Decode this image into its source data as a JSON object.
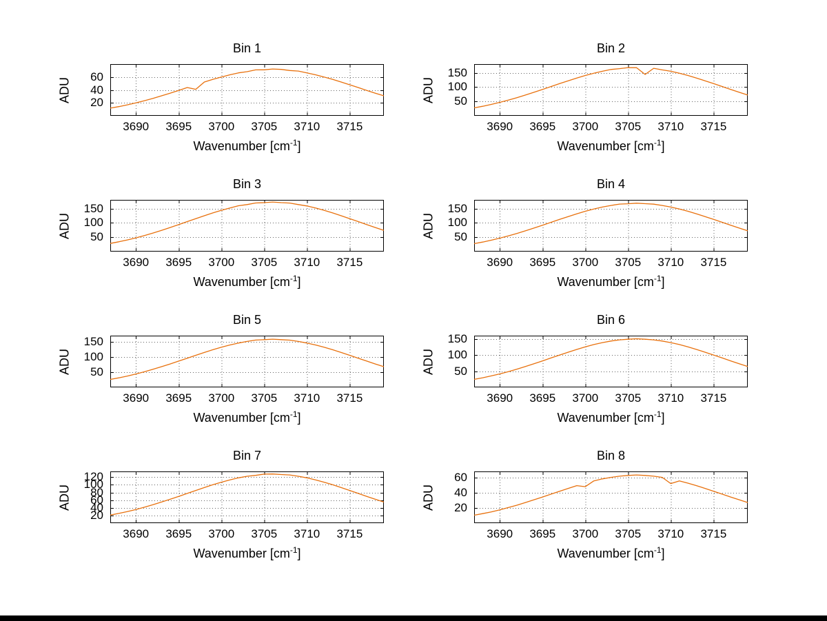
{
  "figure": {
    "background": "#ffffff",
    "line_color": "#e8700c",
    "grid_color": "#606060",
    "axis_color": "#000000"
  },
  "chart_data": {
    "type": "line",
    "xlabel": "Wavenumber [cm^-1]",
    "ylabel": "ADU",
    "grid": true,
    "legend": "none",
    "xlim": [
      3687,
      3719
    ],
    "xticks": [
      3690,
      3695,
      3700,
      3705,
      3710,
      3715
    ],
    "x": [
      3687,
      3688,
      3689,
      3690,
      3691,
      3692,
      3693,
      3694,
      3695,
      3696,
      3697,
      3698,
      3699,
      3700,
      3701,
      3702,
      3703,
      3704,
      3705,
      3706,
      3707,
      3708,
      3709,
      3710,
      3711,
      3712,
      3713,
      3714,
      3715,
      3716,
      3717,
      3718,
      3719
    ],
    "charts": [
      {
        "title": "Bin 1",
        "yticks": [
          20,
          40,
          60
        ],
        "ylim": [
          0,
          80
        ],
        "values": [
          11.8,
          14.2,
          17.0,
          20.0,
          23.4,
          27.0,
          30.9,
          35.0,
          39.3,
          43.7,
          41.0,
          52.3,
          56.4,
          60.1,
          63.5,
          66.5,
          68.3,
          71.0,
          71.2,
          72.4,
          71.8,
          70.1,
          69.2,
          66.5,
          63.5,
          60.1,
          56.4,
          52.3,
          48.0,
          43.7,
          39.3,
          35.0,
          30.9
        ]
      },
      {
        "title": "Bin 2",
        "yticks": [
          50,
          100,
          150
        ],
        "ylim": [
          0,
          180
        ],
        "values": [
          27.6,
          33.2,
          39.6,
          46.7,
          54.6,
          63.1,
          72.2,
          81.8,
          91.7,
          101.9,
          112.1,
          122.0,
          131.5,
          140.3,
          148.3,
          155.1,
          161.2,
          164.1,
          167.8,
          167.5,
          144.0,
          165.3,
          159.9,
          155.1,
          148.3,
          140.3,
          131.5,
          122.0,
          112.1,
          101.9,
          91.7,
          81.8,
          72.2
        ]
      },
      {
        "title": "Bin 3",
        "yticks": [
          50,
          100,
          150
        ],
        "ylim": [
          0,
          180
        ],
        "values": [
          28.3,
          34.0,
          40.5,
          47.8,
          55.8,
          64.6,
          73.9,
          83.7,
          93.9,
          104.3,
          114.7,
          124.9,
          134.6,
          143.7,
          151.8,
          159.5,
          163.8,
          169.2,
          170.4,
          172.6,
          170.3,
          169.0,
          163.6,
          158.8,
          151.8,
          143.7,
          134.6,
          124.9,
          114.7,
          104.3,
          93.9,
          83.7,
          73.9
        ]
      },
      {
        "title": "Bin 4",
        "yticks": [
          50,
          100,
          150
        ],
        "ylim": [
          0,
          180
        ],
        "values": [
          27.6,
          33.2,
          39.6,
          46.7,
          54.6,
          63.1,
          72.2,
          81.8,
          91.7,
          101.9,
          112.1,
          122.0,
          131.5,
          140.3,
          148.3,
          155.1,
          160.6,
          165.4,
          166.6,
          168.4,
          166.8,
          165.2,
          160.6,
          155.1,
          148.3,
          140.3,
          131.5,
          122.0,
          112.1,
          101.9,
          91.7,
          81.8,
          72.2
        ]
      },
      {
        "title": "Bin 5",
        "yticks": [
          50,
          100,
          150
        ],
        "ylim": [
          0,
          170
        ],
        "values": [
          26.0,
          31.3,
          37.2,
          43.9,
          51.3,
          59.3,
          67.9,
          76.9,
          86.3,
          95.8,
          105.4,
          114.7,
          123.7,
          132.0,
          139.4,
          145.8,
          151.0,
          155.6,
          156.8,
          158.5,
          156.9,
          155.3,
          151.0,
          145.8,
          139.4,
          132.0,
          123.7,
          114.7,
          105.4,
          95.8,
          86.3,
          76.9,
          67.9
        ]
      },
      {
        "title": "Bin 6",
        "yticks": [
          50,
          100,
          150
        ],
        "ylim": [
          0,
          160
        ],
        "values": [
          24.7,
          29.7,
          35.4,
          41.7,
          48.7,
          56.3,
          64.4,
          73.0,
          81.9,
          91.0,
          100.1,
          108.9,
          117.4,
          125.3,
          132.4,
          138.5,
          143.4,
          147.0,
          148.9,
          150.4,
          149.0,
          147.0,
          143.4,
          138.5,
          132.4,
          125.3,
          117.4,
          108.9,
          100.1,
          91.0,
          81.9,
          73.0,
          64.4
        ]
      },
      {
        "title": "Bin 7",
        "yticks": [
          20,
          40,
          60,
          80,
          100,
          120
        ],
        "ylim": [
          0,
          135
        ],
        "values": [
          21.1,
          25.3,
          30.2,
          35.6,
          41.6,
          48.0,
          55.0,
          62.3,
          69.9,
          77.6,
          85.4,
          92.9,
          100.2,
          106.9,
          113.0,
          118.2,
          122.4,
          124.8,
          127.9,
          128.3,
          126.9,
          125.8,
          122.4,
          118.2,
          113.0,
          106.9,
          100.2,
          92.9,
          85.4,
          77.6,
          69.9,
          62.3,
          55.0
        ]
      },
      {
        "title": "Bin 8",
        "yticks": [
          20,
          40,
          60
        ],
        "ylim": [
          0,
          68
        ],
        "values": [
          10.4,
          12.5,
          14.8,
          17.5,
          20.5,
          23.6,
          27.1,
          30.7,
          34.4,
          38.2,
          42.0,
          45.7,
          49.3,
          48.0,
          55.6,
          58.2,
          60.2,
          61.7,
          62.7,
          63.4,
          62.7,
          61.7,
          60.2,
          52.0,
          55.6,
          52.6,
          49.3,
          45.7,
          42.0,
          38.2,
          34.4,
          30.7,
          27.1
        ]
      }
    ]
  }
}
